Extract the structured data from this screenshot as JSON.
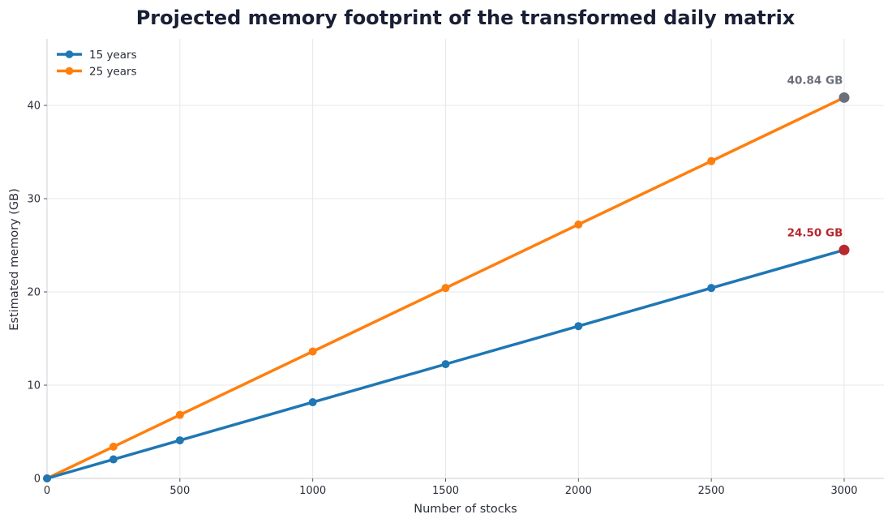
{
  "chart_data": {
    "type": "line",
    "title": "Projected memory footprint of the transformed daily matrix",
    "xlabel": "Number of stocks",
    "ylabel": "Estimated memory (GB)",
    "x": [
      0,
      250,
      500,
      1000,
      1500,
      2000,
      2500,
      3000
    ],
    "series": [
      {
        "name": "15 years",
        "color": "#1f77b4",
        "values": [
          0,
          2.04,
          4.08,
          8.17,
          12.25,
          16.33,
          20.42,
          24.5
        ]
      },
      {
        "name": "25 years",
        "color": "#ff7f0e",
        "values": [
          0,
          3.4,
          6.81,
          13.61,
          20.42,
          27.23,
          34.03,
          40.84
        ]
      }
    ],
    "xlim": [
      0,
      3150
    ],
    "ylim": [
      0,
      47
    ],
    "xticks": [
      0,
      500,
      1000,
      1500,
      2000,
      2500,
      3000
    ],
    "yticks": [
      0,
      10,
      20,
      30,
      40
    ],
    "grid": true,
    "legend_position": "upper left",
    "annotations": [
      {
        "text": "40.84 GB",
        "x": 3000,
        "y": 40.84,
        "color": "#6b6f7b",
        "marker_color": "#6b6f7b"
      },
      {
        "text": "24.50 GB",
        "x": 3000,
        "y": 24.5,
        "color": "#b8282e",
        "marker_color": "#b8282e"
      }
    ]
  }
}
